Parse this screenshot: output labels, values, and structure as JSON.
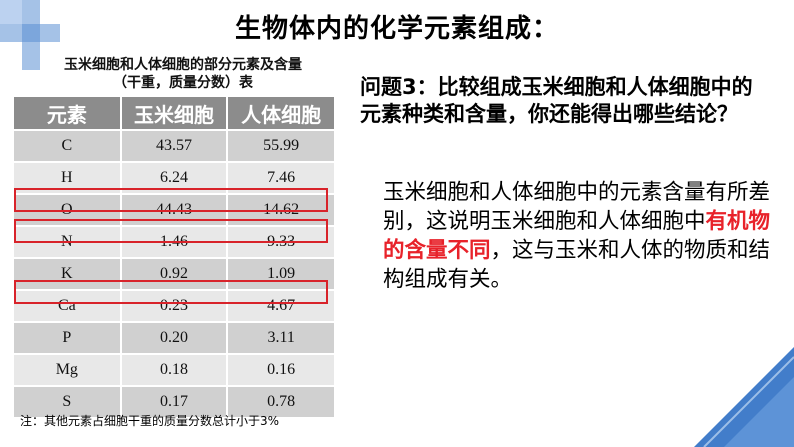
{
  "title": "生物体内的化学元素组成：",
  "table": {
    "caption_line1": "玉米细胞和人体细胞的部分元素及含量",
    "caption_line2": "（干重，质量分数）表",
    "headers": [
      "元素",
      "玉米细胞",
      "人体细胞"
    ],
    "rows": [
      {
        "element": "C",
        "corn": "43.57",
        "human": "55.99"
      },
      {
        "element": "H",
        "corn": "6.24",
        "human": "7.46"
      },
      {
        "element": "O",
        "corn": "44.43",
        "human": "14.62"
      },
      {
        "element": "N",
        "corn": "1.46",
        "human": "9.33"
      },
      {
        "element": "K",
        "corn": "0.92",
        "human": "1.09"
      },
      {
        "element": "Ca",
        "corn": "0.23",
        "human": "4.67"
      },
      {
        "element": "P",
        "corn": "0.20",
        "human": "3.11"
      },
      {
        "element": "Mg",
        "corn": "0.18",
        "human": "0.16"
      },
      {
        "element": "S",
        "corn": "0.17",
        "human": "0.78"
      }
    ],
    "highlighted_elements": [
      "O",
      "N",
      "Ca"
    ],
    "highlight_color": "#d8232a",
    "header_bg": "#8c8c8c"
  },
  "footnote": "注：其他元素占细胞干重的质量分数总计小于3%",
  "question": "问题3：比较组成玉米细胞和人体细胞中的元素种类和含量，你还能得出哪些结论？",
  "answer": {
    "part1": "玉米细胞和人体细胞中的元素含量有所差别，这说明玉米细胞和人体细胞中",
    "emphasis": "有机物的含量不同",
    "part2": "，这与玉米和人体的物质和结构组成有关。",
    "emphasis_color": "#e8222a"
  },
  "decoration": {
    "plus_icon_color": "#5b8fd4",
    "corner_color": "#2e6fc4"
  }
}
